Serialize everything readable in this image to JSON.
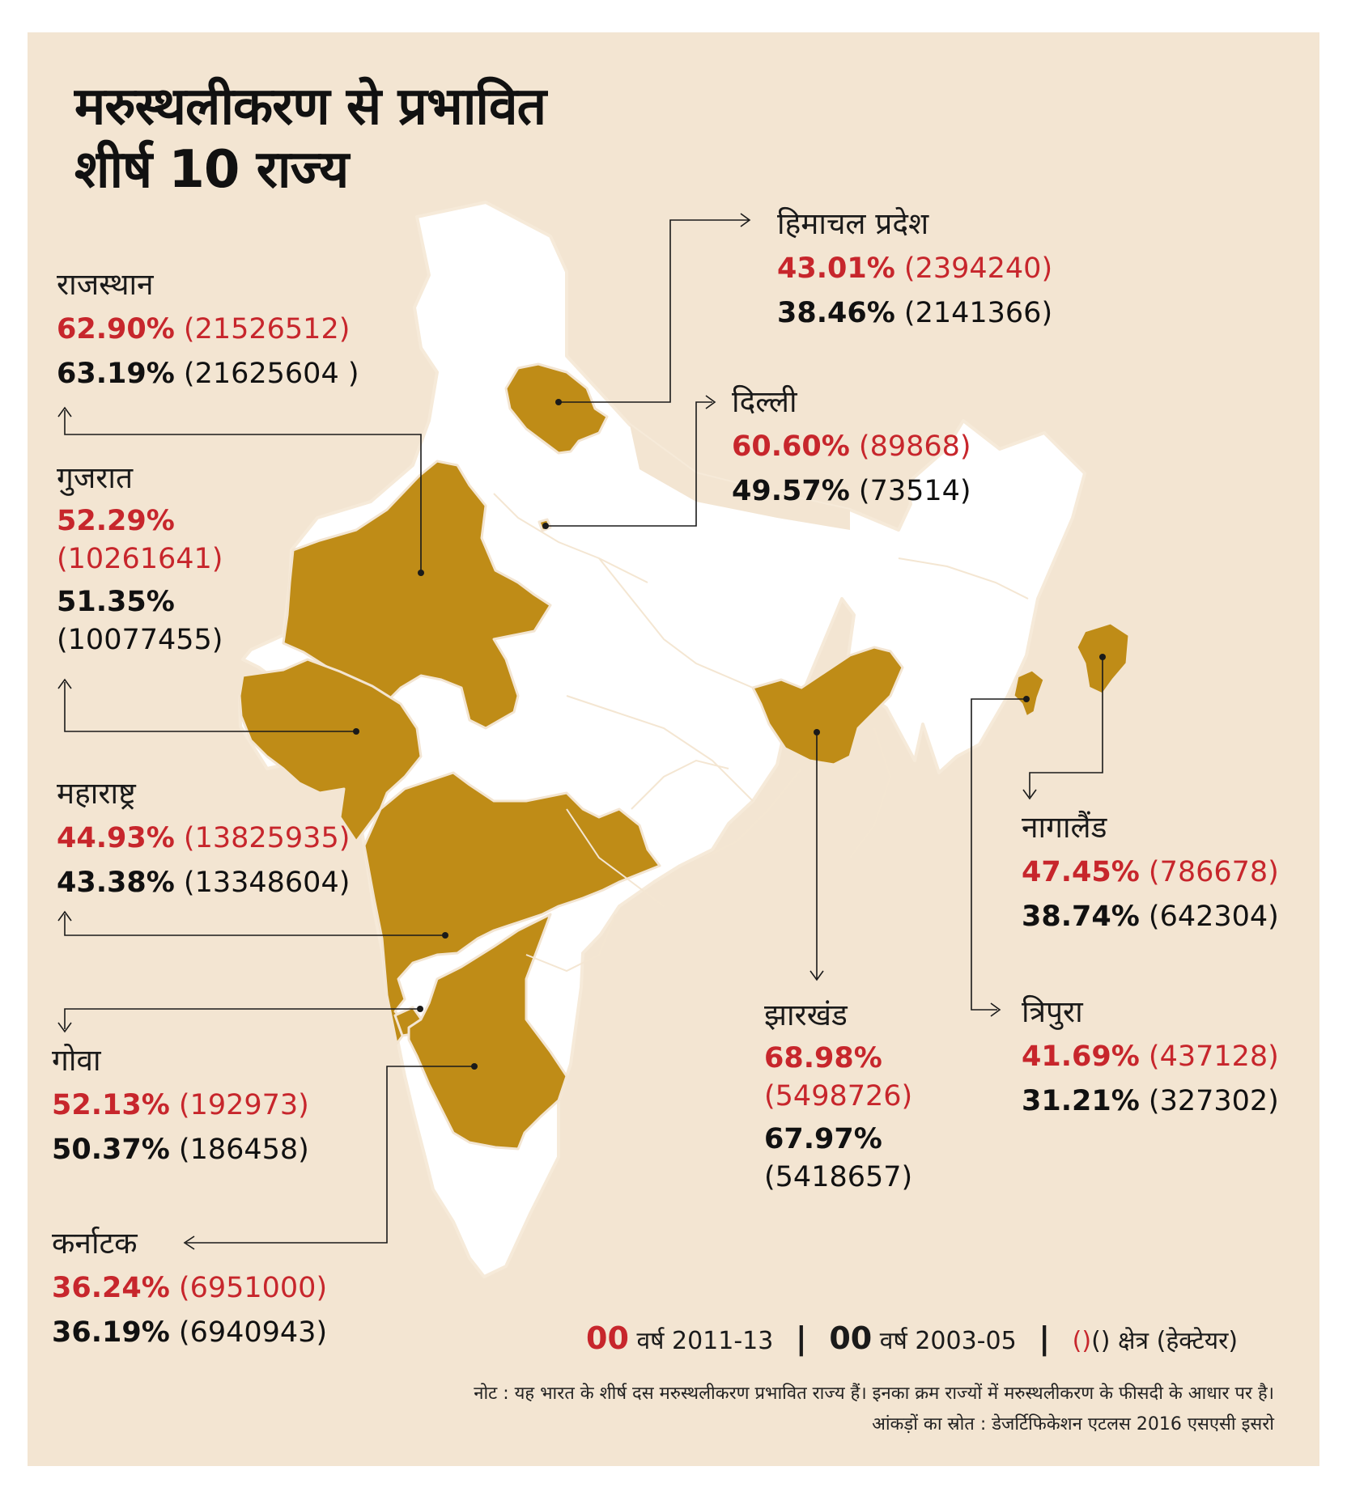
{
  "title": {
    "line1": "मरुस्थलीकरण से प्रभावित",
    "line2": "शीर्ष 10 राज्य"
  },
  "colors": {
    "background": "#f3e5d2",
    "affected_state": "#bf8c17",
    "other_states": "#ffffff",
    "value_2011_13": "#c7262c",
    "value_2003_05": "#111111"
  },
  "states": [
    {
      "id": "rajasthan",
      "name": "राजस्थान",
      "pct_2011_13": "62.90%",
      "area_2011_13": "(21526512)",
      "pct_2003_05": "63.19%",
      "area_2003_05": "(21625604 )"
    },
    {
      "id": "gujarat",
      "name": "गुजरात",
      "pct_2011_13": "52.29%",
      "area_2011_13": "(10261641)",
      "pct_2003_05": "51.35%",
      "area_2003_05": "(10077455)"
    },
    {
      "id": "maharashtra",
      "name": "महाराष्ट्र",
      "pct_2011_13": "44.93%",
      "area_2011_13": "(13825935)",
      "pct_2003_05": "43.38%",
      "area_2003_05": "(13348604)"
    },
    {
      "id": "goa",
      "name": "गोवा",
      "pct_2011_13": "52.13%",
      "area_2011_13": "(192973)",
      "pct_2003_05": "50.37%",
      "area_2003_05": "(186458)"
    },
    {
      "id": "karnataka",
      "name": "कर्नाटक",
      "pct_2011_13": "36.24%",
      "area_2011_13": "(6951000)",
      "pct_2003_05": "36.19%",
      "area_2003_05": "(6940943)"
    },
    {
      "id": "himachal",
      "name": "हिमाचल प्रदेश",
      "pct_2011_13": "43.01%",
      "area_2011_13": "(2394240)",
      "pct_2003_05": "38.46%",
      "area_2003_05": "(2141366)"
    },
    {
      "id": "delhi",
      "name": "दिल्ली",
      "pct_2011_13": "60.60%",
      "area_2011_13": "(89868)",
      "pct_2003_05": "49.57%",
      "area_2003_05": "(73514)"
    },
    {
      "id": "jharkhand",
      "name": "झारखंड",
      "pct_2011_13": "68.98%",
      "area_2011_13": "(5498726)",
      "pct_2003_05": "67.97%",
      "area_2003_05": "(5418657)"
    },
    {
      "id": "nagaland",
      "name": "नागालैंड",
      "pct_2011_13": "47.45%",
      "area_2011_13": "(786678)",
      "pct_2003_05": "38.74%",
      "area_2003_05": "(642304)"
    },
    {
      "id": "tripura",
      "name": "त्रिपुरा",
      "pct_2011_13": "41.69%",
      "area_2011_13": "(437128)",
      "pct_2003_05": "31.21%",
      "area_2003_05": "(327302)"
    }
  ],
  "legend": {
    "sample_2011": "00",
    "label_2011": "वर्ष 2011-13",
    "separator": "|",
    "sample_2003": "00",
    "label_2003": "वर्ष 2003-05",
    "sample_area_red": "()",
    "sample_area_black": "()",
    "label_area": "क्षेत्र (हेक्टेयर)"
  },
  "note": "नोट : यह भारत के शीर्ष दस मरुस्थलीकरण प्रभावित राज्य हैं। इनका क्रम राज्यों में मरुस्थलीकरण के फीसदी के आधार पर है।",
  "source": "आंकड़ों का स्रोत :  डेजर्टिफिकेशन एटलस 2016 एसएसी इसरो"
}
